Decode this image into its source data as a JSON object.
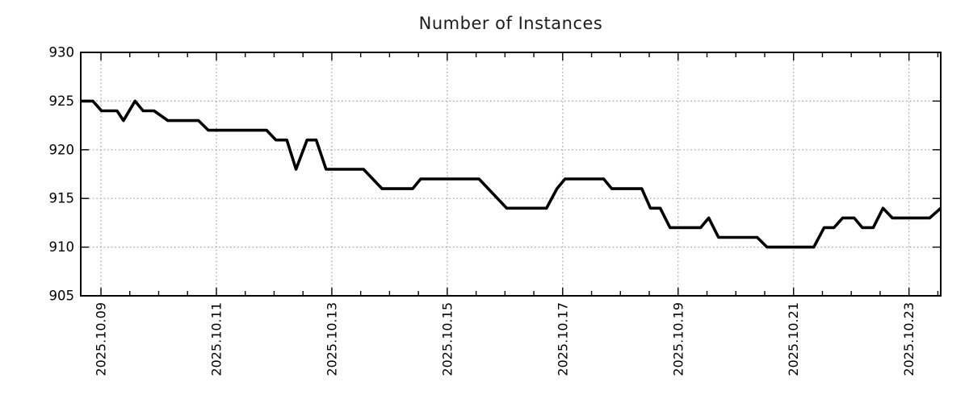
{
  "chart_data": {
    "type": "line",
    "title": "Number of Instances",
    "xlabel": "",
    "ylabel": "",
    "grid": true,
    "legend": "none",
    "background": "#ffffff",
    "grid_color": "#9b9b9b",
    "border_color": "#000000",
    "x_axis": {
      "tick_labels": [
        "2025.10.09",
        "2025.10.11",
        "2025.10.13",
        "2025.10.15",
        "2025.10.17",
        "2025.10.19",
        "2025.10.21",
        "2025.10.23"
      ],
      "tick_positions_days": [
        0,
        2,
        4,
        6,
        8,
        10,
        12,
        14
      ],
      "range_days": [
        -0.35,
        14.55
      ],
      "minor_tick_interval_days": 0.5
    },
    "y_axis": {
      "tick_labels": [
        "905",
        "910",
        "915",
        "920",
        "925",
        "930"
      ],
      "tick_values": [
        905,
        910,
        915,
        920,
        925,
        930
      ],
      "range": [
        905,
        930
      ]
    },
    "series": [
      {
        "name": "instances",
        "color": "#000000",
        "points": [
          [
            -0.35,
            925
          ],
          [
            -0.14,
            925
          ],
          [
            0.01,
            924
          ],
          [
            0.28,
            924
          ],
          [
            0.39,
            923
          ],
          [
            0.59,
            925
          ],
          [
            0.73,
            924
          ],
          [
            0.92,
            924
          ],
          [
            1.16,
            923
          ],
          [
            1.69,
            923
          ],
          [
            1.86,
            922
          ],
          [
            2.87,
            922
          ],
          [
            3.03,
            921
          ],
          [
            3.22,
            921
          ],
          [
            3.38,
            918
          ],
          [
            3.57,
            921
          ],
          [
            3.73,
            921
          ],
          [
            3.9,
            918
          ],
          [
            4.55,
            918
          ],
          [
            4.87,
            916
          ],
          [
            5.4,
            916
          ],
          [
            5.54,
            917
          ],
          [
            6.55,
            917
          ],
          [
            7.03,
            914
          ],
          [
            7.72,
            914
          ],
          [
            7.9,
            916
          ],
          [
            8.04,
            917
          ],
          [
            8.71,
            917
          ],
          [
            8.85,
            916
          ],
          [
            9.37,
            916
          ],
          [
            9.52,
            914
          ],
          [
            9.69,
            914
          ],
          [
            9.86,
            912
          ],
          [
            10.39,
            912
          ],
          [
            10.53,
            913
          ],
          [
            10.7,
            911
          ],
          [
            11.37,
            911
          ],
          [
            11.54,
            910
          ],
          [
            12.35,
            910
          ],
          [
            12.53,
            912
          ],
          [
            12.7,
            912
          ],
          [
            12.85,
            913
          ],
          [
            13.05,
            913
          ],
          [
            13.19,
            912
          ],
          [
            13.38,
            912
          ],
          [
            13.55,
            914
          ],
          [
            13.71,
            913
          ],
          [
            14.36,
            913
          ],
          [
            14.55,
            914
          ]
        ]
      }
    ]
  }
}
